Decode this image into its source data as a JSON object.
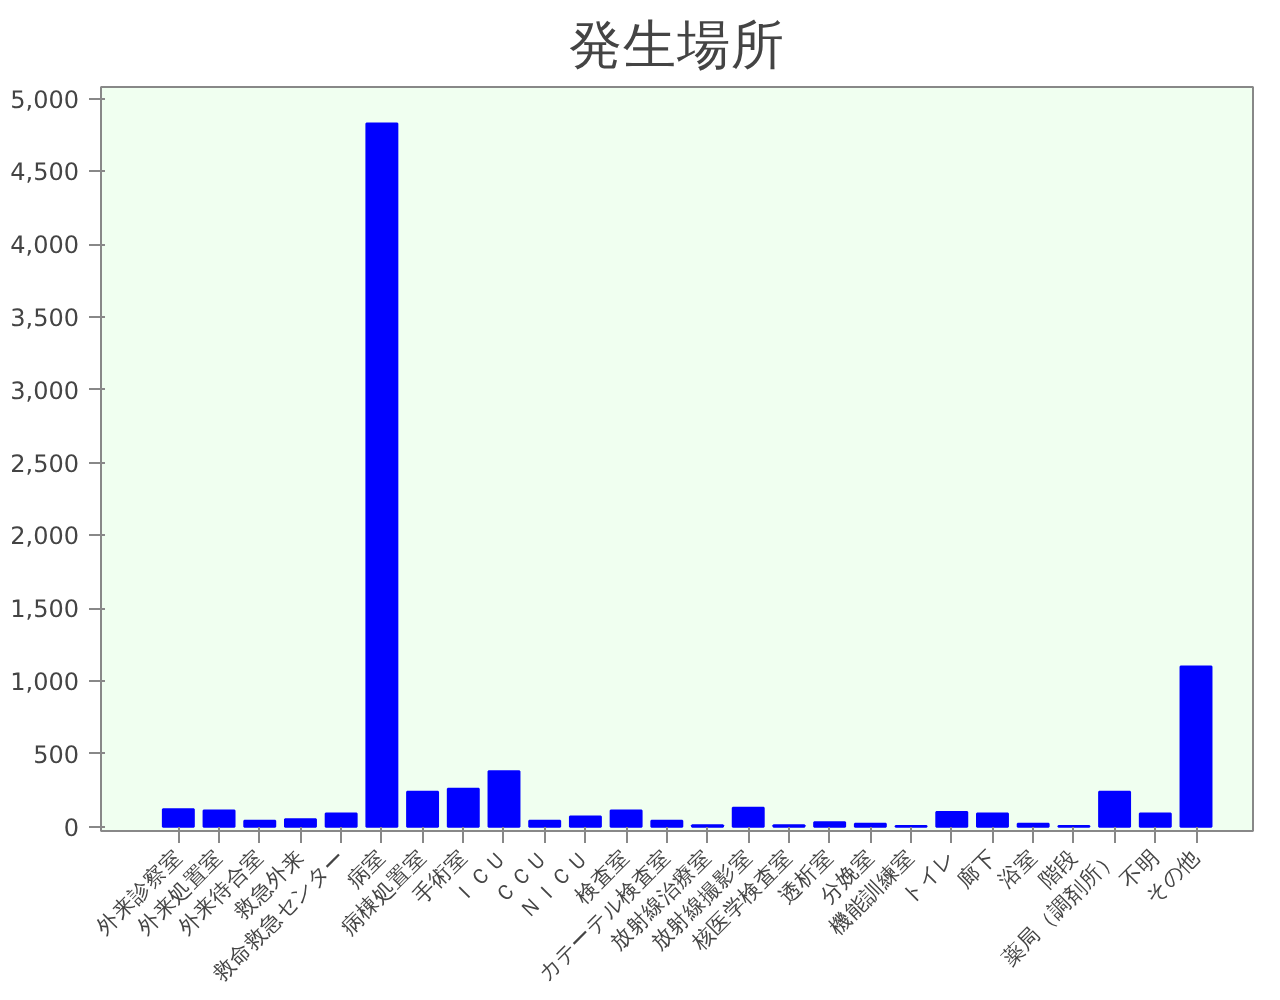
{
  "chart_data": {
    "type": "bar",
    "title": "発生場所",
    "categories": [
      "外来診察室",
      "外来処置室",
      "外来待合室",
      "救急外来",
      "救命救急センター",
      "病室",
      "病棟処置室",
      "手術室",
      "ＩＣＵ",
      "ＣＣＵ",
      "ＮＩＣＵ",
      "検査室",
      "カテーテル検査室",
      "放射線治療室",
      "放射線撮影室",
      "核医学検査室",
      "透析室",
      "分娩室",
      "機能訓練室",
      "トイレ",
      "廊下",
      "浴室",
      "階段",
      "薬局（調剤所）",
      "不明",
      "その他"
    ],
    "series": [
      {
        "color": "#0000ff",
        "values": [
          120,
          110,
          40,
          50,
          90,
          4830,
          240,
          260,
          380,
          40,
          70,
          110,
          40,
          10,
          130,
          10,
          30,
          20,
          5,
          100,
          90,
          20,
          5,
          240,
          90,
          1100
        ]
      }
    ],
    "ylim": [
      -30,
      5080
    ],
    "yticks": [
      {
        "value": 0,
        "label": "0"
      },
      {
        "value": 500,
        "label": "500"
      },
      {
        "value": 1000,
        "label": "1,000"
      },
      {
        "value": 1500,
        "label": "1,500"
      },
      {
        "value": 2000,
        "label": "2,000"
      },
      {
        "value": 2500,
        "label": "2,500"
      },
      {
        "value": 3000,
        "label": "3,000"
      },
      {
        "value": 3500,
        "label": "3,500"
      },
      {
        "value": 4000,
        "label": "4,000"
      },
      {
        "value": 4500,
        "label": "4,500"
      },
      {
        "value": 5000,
        "label": "5,000"
      }
    ],
    "grid": false
  }
}
